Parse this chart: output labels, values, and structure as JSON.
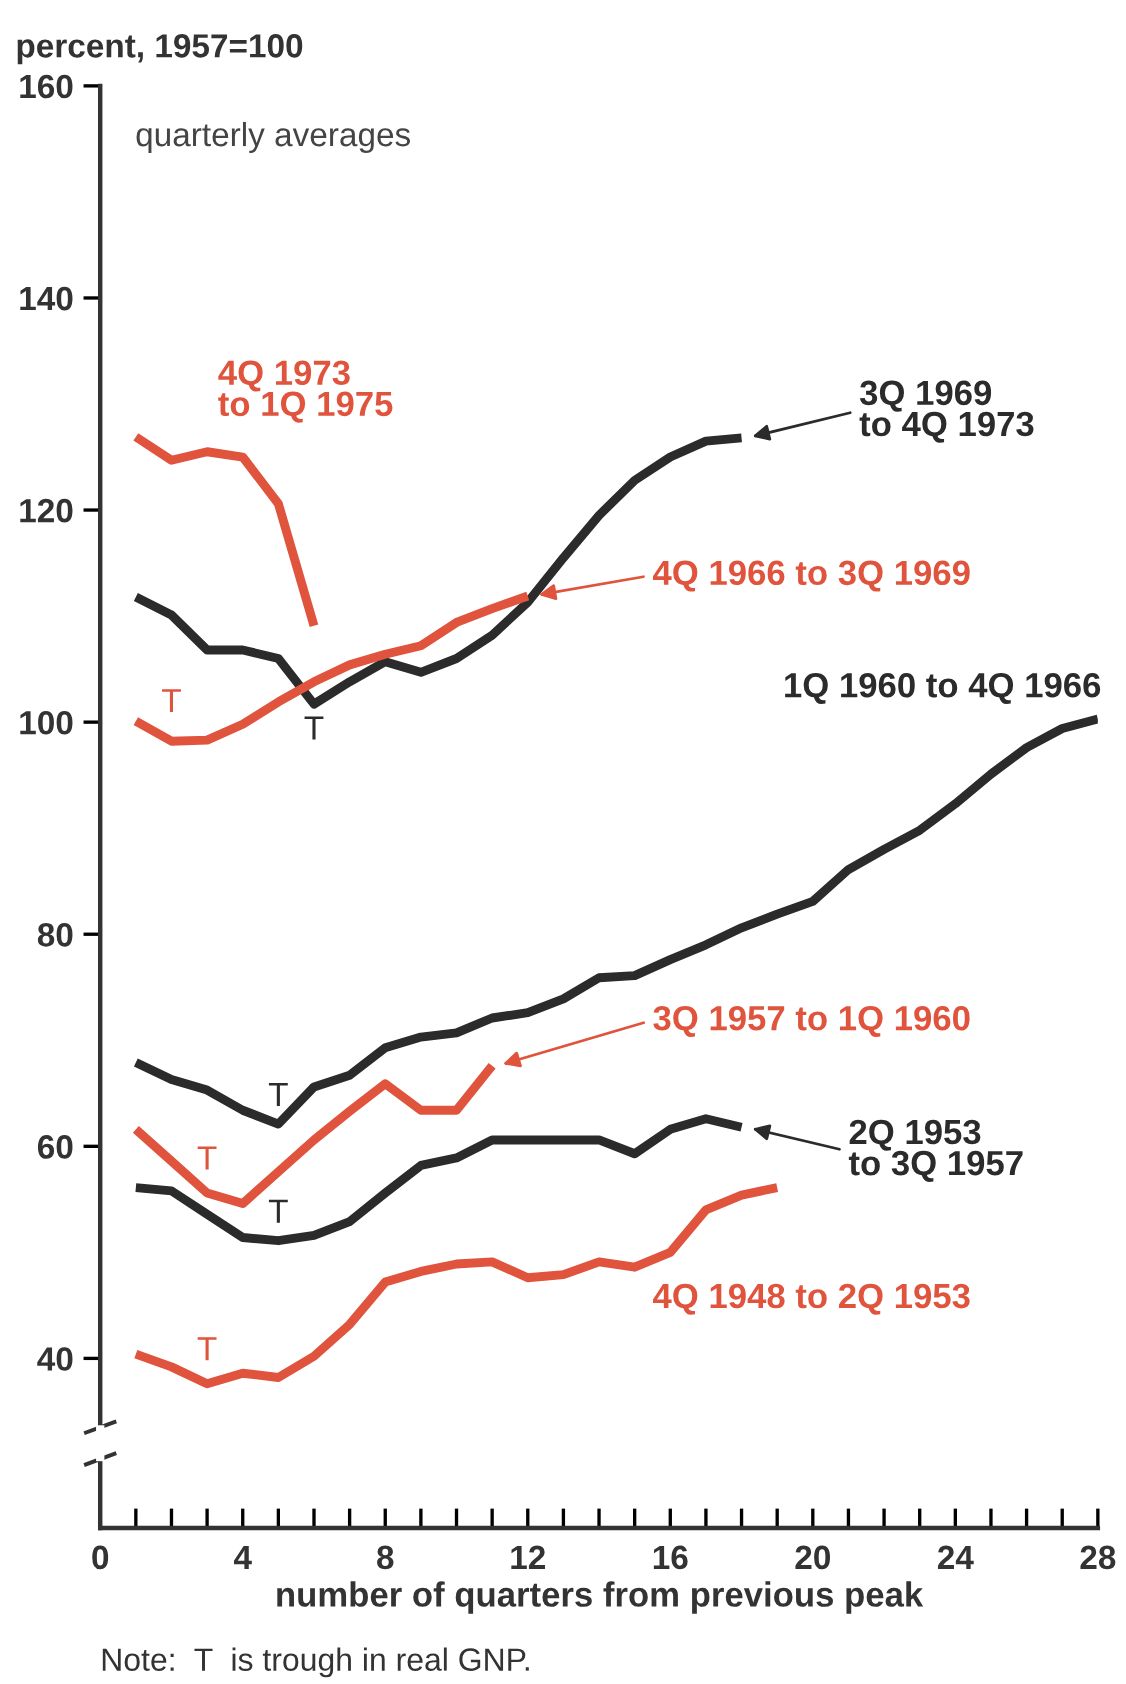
{
  "chart_data": {
    "type": "line",
    "ylabel": "percent, 1957=100",
    "subtitle": "quarterly averages",
    "xlabel": "number of quarters from previous peak",
    "xlim": [
      0,
      28
    ],
    "xticks": [
      0,
      {
        "value": 1,
        "label": null
      },
      {
        "value": 2,
        "label": null
      },
      {
        "value": 3,
        "label": null
      },
      4,
      {
        "value": 5,
        "label": null
      },
      {
        "value": 6,
        "label": null
      },
      {
        "value": 7,
        "label": null
      },
      8,
      {
        "value": 9,
        "label": null
      },
      {
        "value": 10,
        "label": null
      },
      {
        "value": 11,
        "label": null
      },
      12,
      {
        "value": 13,
        "label": null
      },
      {
        "value": 14,
        "label": null
      },
      {
        "value": 15,
        "label": null
      },
      16,
      {
        "value": 17,
        "label": null
      },
      {
        "value": 18,
        "label": null
      },
      {
        "value": 19,
        "label": null
      },
      20,
      {
        "value": 21,
        "label": null
      },
      {
        "value": 22,
        "label": null
      },
      {
        "value": 23,
        "label": null
      },
      24,
      {
        "value": 25,
        "label": null
      },
      {
        "value": 26,
        "label": null
      },
      {
        "value": 27,
        "label": null
      },
      28
    ],
    "ylim": [
      24,
      160
    ],
    "yticks": [
      40,
      60,
      80,
      100,
      120,
      140,
      160
    ],
    "grid": false,
    "legend": "right",
    "series": [
      {
        "name": "4Q 1973\nto 1Q 1975",
        "color": "#e0533c",
        "x": [
          1,
          2,
          3,
          4,
          5,
          6
        ],
        "values": [
          126.9,
          124.7,
          125.5,
          125,
          120.6,
          109.1
        ]
      },
      {
        "name": "3Q 1969\nto 4Q 1973",
        "color": "#2b2b2b",
        "x": [
          1,
          2,
          3,
          4,
          5,
          6,
          7,
          8,
          9,
          10,
          11,
          12,
          13,
          14,
          15,
          16,
          17,
          18
        ],
        "values": [
          111.8,
          110.1,
          106.8,
          106.8,
          106,
          101.7,
          103.8,
          105.7,
          104.7,
          106,
          108.2,
          111.3,
          115.5,
          119.5,
          122.8,
          125,
          126.5,
          126.8
        ]
      },
      {
        "name": "4Q 1966 to 3Q 1969",
        "color": "#e0533c",
        "x": [
          1,
          2,
          3,
          4,
          5,
          6,
          7,
          8,
          9,
          10,
          11,
          12
        ],
        "values": [
          100.1,
          98.2,
          98.3,
          99.8,
          101.9,
          103.8,
          105.4,
          106.4,
          107.2,
          109.4,
          110.7,
          111.9
        ]
      },
      {
        "name": "1Q 1960 to 4Q 1966",
        "color": "#2b2b2b",
        "x": [
          1,
          2,
          3,
          4,
          5,
          6,
          7,
          8,
          9,
          10,
          11,
          12,
          13,
          14,
          15,
          16,
          17,
          18,
          19,
          20,
          21,
          22,
          23,
          24,
          25,
          26,
          27,
          28
        ],
        "values": [
          67.9,
          66.3,
          65.3,
          63.4,
          62.1,
          65.6,
          66.7,
          69.3,
          70.3,
          70.7,
          72.1,
          72.6,
          73.9,
          75.9,
          76.1,
          77.6,
          79,
          80.6,
          81.9,
          83.1,
          86.1,
          88,
          89.8,
          92.3,
          95.1,
          97.6,
          99.4,
          100.3
        ]
      },
      {
        "name": "3Q 1957 to 1Q 1960",
        "color": "#e0533c",
        "x": [
          1,
          2,
          3,
          4,
          5,
          6,
          7,
          8,
          9,
          10,
          11
        ],
        "values": [
          61.6,
          58.6,
          55.6,
          54.6,
          57.6,
          60.6,
          63.3,
          65.9,
          63.4,
          63.4,
          67.6
        ]
      },
      {
        "name": "2Q 1953\nto 3Q 1957",
        "color": "#2b2b2b",
        "x": [
          1,
          2,
          3,
          4,
          5,
          6,
          7,
          8,
          9,
          10,
          11,
          12,
          13,
          14,
          15,
          16,
          17,
          18
        ],
        "values": [
          56.1,
          55.8,
          53.6,
          51.4,
          51.1,
          51.6,
          52.9,
          55.6,
          58.2,
          58.9,
          60.6,
          60.6,
          60.6,
          60.6,
          59.3,
          61.6,
          62.6,
          61.8
        ]
      },
      {
        "name": "4Q 1948 to 2Q 1953",
        "color": "#e0533c",
        "x": [
          1,
          2,
          3,
          4,
          5,
          6,
          7,
          8,
          9,
          10,
          11,
          12,
          13,
          14,
          15,
          16,
          17,
          18,
          19
        ],
        "values": [
          40.4,
          39.2,
          37.6,
          38.6,
          38.2,
          40.2,
          43.2,
          47.2,
          48.2,
          48.9,
          49.1,
          47.6,
          47.9,
          49.1,
          48.6,
          50.0,
          54.0,
          55.4,
          56.1
        ]
      }
    ],
    "annotations": [
      {
        "text": "T",
        "x": 2,
        "y": 98.2
      },
      {
        "text": "T",
        "x": 6,
        "y": 101.7
      },
      {
        "text": "T",
        "x": 5,
        "y": 62.1
      },
      {
        "text": "T",
        "x": 3,
        "y": 55.6
      },
      {
        "text": "T",
        "x": 5,
        "y": 51.1
      },
      {
        "text": "T",
        "x": 3,
        "y": 37.6
      },
      "Note:  T  is trough in real GNP."
    ]
  }
}
